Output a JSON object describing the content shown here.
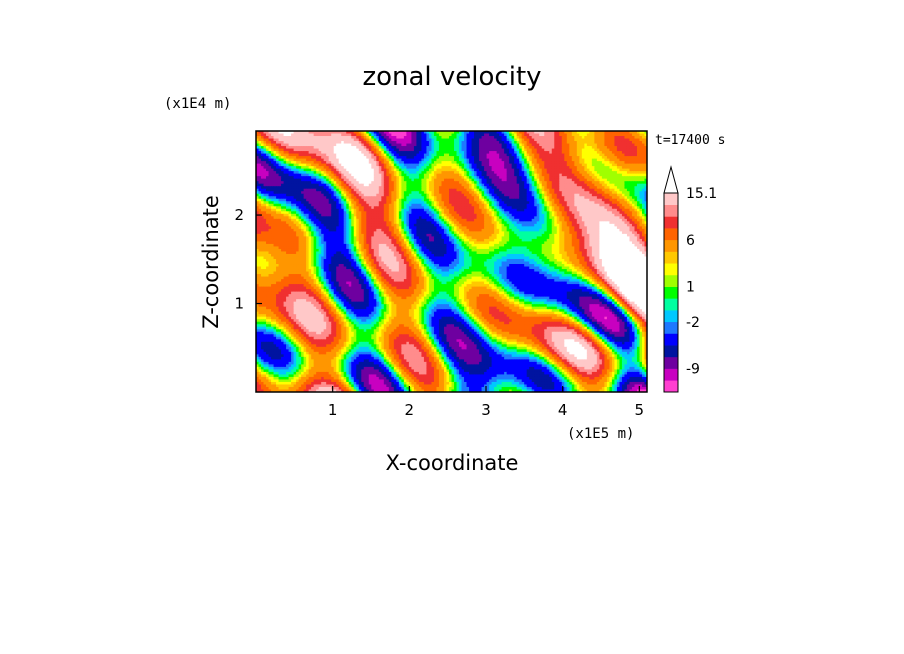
{
  "chart_data": {
    "type": "heatmap",
    "title": "zonal velocity",
    "xlabel": "X-coordinate",
    "ylabel": "Z-coordinate",
    "x_unit": "(x1E5 m)",
    "y_unit": "(x1E4 m)",
    "time_label": "t=17400 s",
    "xlim": [
      0,
      5.1
    ],
    "ylim": [
      0,
      2.95
    ],
    "x_ticks": [
      1,
      2,
      3,
      4,
      5
    ],
    "y_ticks": [
      1,
      2
    ],
    "colorbar": {
      "levels": [
        -13,
        -11,
        -9,
        -7,
        -5,
        -3,
        -2,
        -1,
        0,
        1,
        2,
        3,
        4,
        6,
        8,
        10,
        12,
        15.1
      ],
      "tick_labels": [
        "15.1",
        "6",
        "1",
        "-2",
        "-9"
      ],
      "tick_values": [
        15.1,
        6,
        1,
        -2,
        -9
      ],
      "colors": [
        "#ff3fd0",
        "#c800c0",
        "#6e00a0",
        "#0014a0",
        "#0000ff",
        "#1e78ff",
        "#00c8ff",
        "#00ffa0",
        "#00ff00",
        "#a0ff00",
        "#ffff00",
        "#ffc800",
        "#ff9600",
        "#ff6400",
        "#f03030",
        "#ff8c8c",
        "#ffc8c8",
        "#ffffff"
      ],
      "extend": "max"
    },
    "grid": false
  }
}
